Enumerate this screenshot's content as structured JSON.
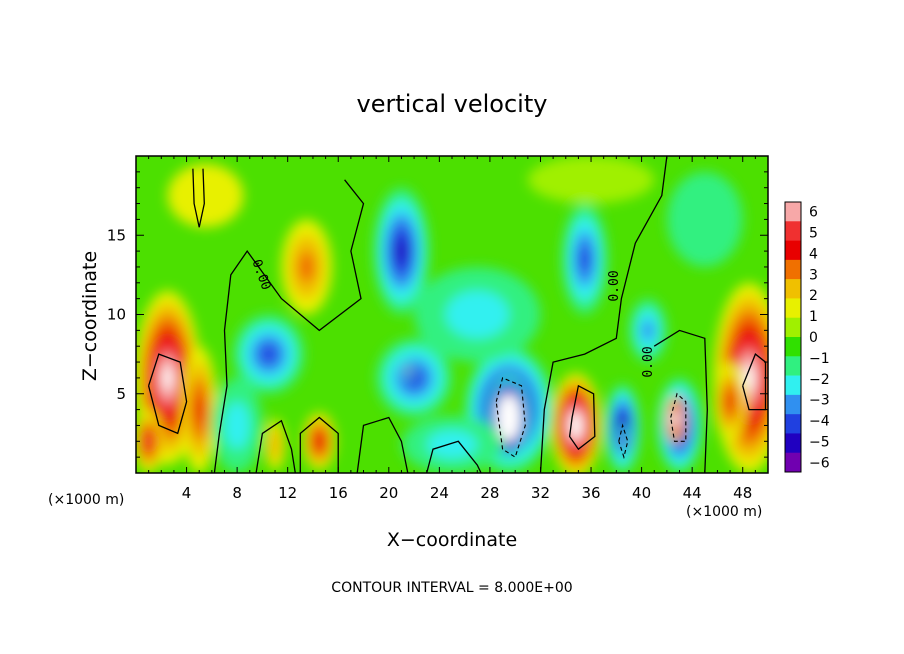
{
  "chart_data": {
    "type": "heatmap",
    "title": "vertical velocity",
    "xlabel": "X−coordinate",
    "ylabel": "Z−coordinate",
    "x_unit_label_left": "(×1000 m)",
    "x_unit_label_right": "(×1000 m)",
    "footer": "CONTOUR INTERVAL = 8.000E+00",
    "xlim": [
      0,
      50
    ],
    "ylim": [
      0,
      20
    ],
    "x_ticks": [
      4,
      8,
      12,
      16,
      20,
      24,
      28,
      32,
      36,
      40,
      44,
      48
    ],
    "y_ticks": [
      5,
      10,
      15
    ],
    "colorbar": {
      "ticks": [
        6,
        5,
        4,
        3,
        2,
        1,
        0,
        -1,
        -2,
        -3,
        -4,
        -5,
        -6
      ],
      "colors": [
        "#f7a8a8",
        "#f03030",
        "#e80000",
        "#f07000",
        "#f0c000",
        "#e8f000",
        "#a0f000",
        "#30e000",
        "#30f080",
        "#30f0f0",
        "#3090f0",
        "#2040e0",
        "#2000c0",
        "#7000b0"
      ]
    },
    "contour_labels": [
      "0.00",
      "0.00",
      "0.00"
    ],
    "blobs": [
      {
        "x": 2.5,
        "z": 6,
        "rx": 2.6,
        "rz": 5.5,
        "v": 7
      },
      {
        "x": 1.0,
        "z": 2,
        "rx": 1.2,
        "rz": 2,
        "v": 5
      },
      {
        "x": 5.0,
        "z": 4,
        "rx": 1.4,
        "rz": 4,
        "v": 4
      },
      {
        "x": 13.5,
        "z": 13,
        "rx": 2.0,
        "rz": 3,
        "v": 3
      },
      {
        "x": 14.5,
        "z": 2.0,
        "rx": 1.3,
        "rz": 1.8,
        "v": 4.5
      },
      {
        "x": 11.0,
        "z": 1.8,
        "rx": 0.8,
        "rz": 1.6,
        "v": 2.5
      },
      {
        "x": 34.8,
        "z": 3.0,
        "rx": 2.0,
        "rz": 3.3,
        "v": 8
      },
      {
        "x": 43.0,
        "z": 3.0,
        "rx": 1.8,
        "rz": 3.0,
        "v": -6
      },
      {
        "x": 42.7,
        "z": 3.4,
        "rx": 0.8,
        "rz": 1.5,
        "v": 9
      },
      {
        "x": 48.5,
        "z": 6.0,
        "rx": 2.8,
        "rz": 6.0,
        "v": 6.5
      },
      {
        "x": 47.0,
        "z": 4.5,
        "rx": 1.3,
        "rz": 2.5,
        "v": 4
      },
      {
        "x": 29.5,
        "z": 4.0,
        "rx": 3.5,
        "rz": 4.0,
        "v": -7
      },
      {
        "x": 29.5,
        "z": 3.5,
        "rx": 1.7,
        "rz": 2.7,
        "v": -14
      },
      {
        "x": 38.5,
        "z": 2.8,
        "rx": 1.4,
        "rz": 2.8,
        "v": -6
      },
      {
        "x": 38.6,
        "z": 2.0,
        "rx": 0.5,
        "rz": 1.0,
        "v": -7
      },
      {
        "x": 21.0,
        "z": 14.0,
        "rx": 2.2,
        "rz": 4.0,
        "v": -4.5
      },
      {
        "x": 35.5,
        "z": 13.5,
        "rx": 1.8,
        "rz": 3.5,
        "v": -3.5
      },
      {
        "x": 22.0,
        "z": 6.0,
        "rx": 3.0,
        "rz": 2.5,
        "v": -3.5
      },
      {
        "x": 10.5,
        "z": 7.5,
        "rx": 2.8,
        "rz": 2.5,
        "v": -3.5
      },
      {
        "x": 27.0,
        "z": 10.0,
        "rx": 5.0,
        "rz": 3.0,
        "v": -2
      },
      {
        "x": 21.5,
        "z": 6.5,
        "rx": 0.5,
        "rz": 0.6,
        "v": -8
      },
      {
        "x": 25.0,
        "z": 1.8,
        "rx": 4.0,
        "rz": 1.8,
        "v": -2
      },
      {
        "x": 8.0,
        "z": 3.0,
        "rx": 2.0,
        "rz": 3.0,
        "v": -1.5
      },
      {
        "x": 40.5,
        "z": 9.0,
        "rx": 1.5,
        "rz": 2.0,
        "v": -2.5
      },
      {
        "x": 45.0,
        "z": 16.0,
        "rx": 3.0,
        "rz": 3.0,
        "v": -0.5
      },
      {
        "x": 5.5,
        "z": 17.5,
        "rx": 3.0,
        "rz": 2.0,
        "v": 1.0
      },
      {
        "x": 36.0,
        "z": 18.5,
        "rx": 5.0,
        "rz": 1.5,
        "v": 0.5
      }
    ],
    "contours": [
      [
        [
          16.5,
          18.5
        ],
        [
          18.0,
          17.0
        ],
        [
          17.0,
          14.0
        ],
        [
          17.8,
          11.0
        ],
        [
          14.5,
          9.0
        ],
        [
          11.5,
          11.0
        ],
        [
          8.8,
          14.0
        ],
        [
          7.5,
          12.5
        ],
        [
          7.0,
          9.0
        ],
        [
          7.2,
          5.5
        ],
        [
          6.6,
          2.5
        ],
        [
          6.2,
          0.0
        ]
      ],
      [
        [
          42.0,
          20.0
        ],
        [
          41.6,
          17.5
        ],
        [
          39.5,
          14.5
        ],
        [
          38.4,
          11.0
        ],
        [
          38.0,
          8.5
        ],
        [
          35.5,
          7.5
        ],
        [
          33.0,
          7.0
        ],
        [
          32.3,
          4.0
        ],
        [
          32.0,
          0.0
        ]
      ],
      [
        [
          45.0,
          0.0
        ],
        [
          45.2,
          4.0
        ],
        [
          45.0,
          8.5
        ],
        [
          43.0,
          9.0
        ],
        [
          41.0,
          8.0
        ]
      ],
      [
        [
          9.5,
          0.0
        ],
        [
          10.0,
          2.5
        ],
        [
          11.5,
          3.3
        ],
        [
          12.3,
          1.5
        ],
        [
          12.6,
          0.0
        ]
      ],
      [
        [
          13.0,
          0.0
        ],
        [
          13.0,
          2.5
        ],
        [
          14.5,
          3.5
        ],
        [
          16.0,
          2.5
        ],
        [
          16.0,
          0.0
        ]
      ],
      [
        [
          23.0,
          0.0
        ],
        [
          23.5,
          1.5
        ],
        [
          25.5,
          2.0
        ],
        [
          27.0,
          0.5
        ],
        [
          27.3,
          0.0
        ]
      ],
      [
        [
          17.5,
          0.0
        ],
        [
          18.0,
          3.0
        ],
        [
          20.0,
          3.5
        ],
        [
          21.0,
          2.0
        ],
        [
          21.5,
          0.0
        ]
      ],
      [
        [
          4.5,
          19.2
        ],
        [
          4.6,
          17.0
        ],
        [
          5.0,
          15.5
        ],
        [
          5.4,
          17.0
        ],
        [
          5.3,
          19.2
        ]
      ],
      [
        [
          1.0,
          5.5
        ],
        [
          1.8,
          7.5
        ],
        [
          3.5,
          7.0
        ],
        [
          4.0,
          4.5
        ],
        [
          3.3,
          2.5
        ],
        [
          1.8,
          3.0
        ],
        [
          1.0,
          5.5
        ]
      ],
      [
        [
          34.5,
          3.5
        ],
        [
          35.0,
          5.5
        ],
        [
          36.2,
          5.0
        ],
        [
          36.3,
          2.3
        ],
        [
          35.0,
          1.5
        ],
        [
          34.3,
          2.3
        ],
        [
          34.5,
          3.5
        ]
      ],
      [
        [
          48.0,
          5.5
        ],
        [
          49.0,
          7.5
        ],
        [
          49.8,
          7.0
        ],
        [
          49.8,
          4.0
        ],
        [
          48.5,
          4.0
        ],
        [
          48.0,
          5.5
        ]
      ]
    ],
    "dashed_contours": [
      [
        [
          28.5,
          4.5
        ],
        [
          29.0,
          6.0
        ],
        [
          30.5,
          5.5
        ],
        [
          30.8,
          3.0
        ],
        [
          30.0,
          1.0
        ],
        [
          29.0,
          1.5
        ],
        [
          28.5,
          4.5
        ]
      ],
      [
        [
          42.3,
          3.5
        ],
        [
          42.8,
          5.0
        ],
        [
          43.5,
          4.5
        ],
        [
          43.5,
          2.0
        ],
        [
          42.6,
          2.0
        ],
        [
          42.3,
          3.5
        ]
      ],
      [
        [
          38.2,
          2.0
        ],
        [
          38.5,
          3.0
        ],
        [
          38.9,
          2.0
        ],
        [
          38.6,
          1.0
        ],
        [
          38.2,
          2.0
        ]
      ]
    ]
  }
}
